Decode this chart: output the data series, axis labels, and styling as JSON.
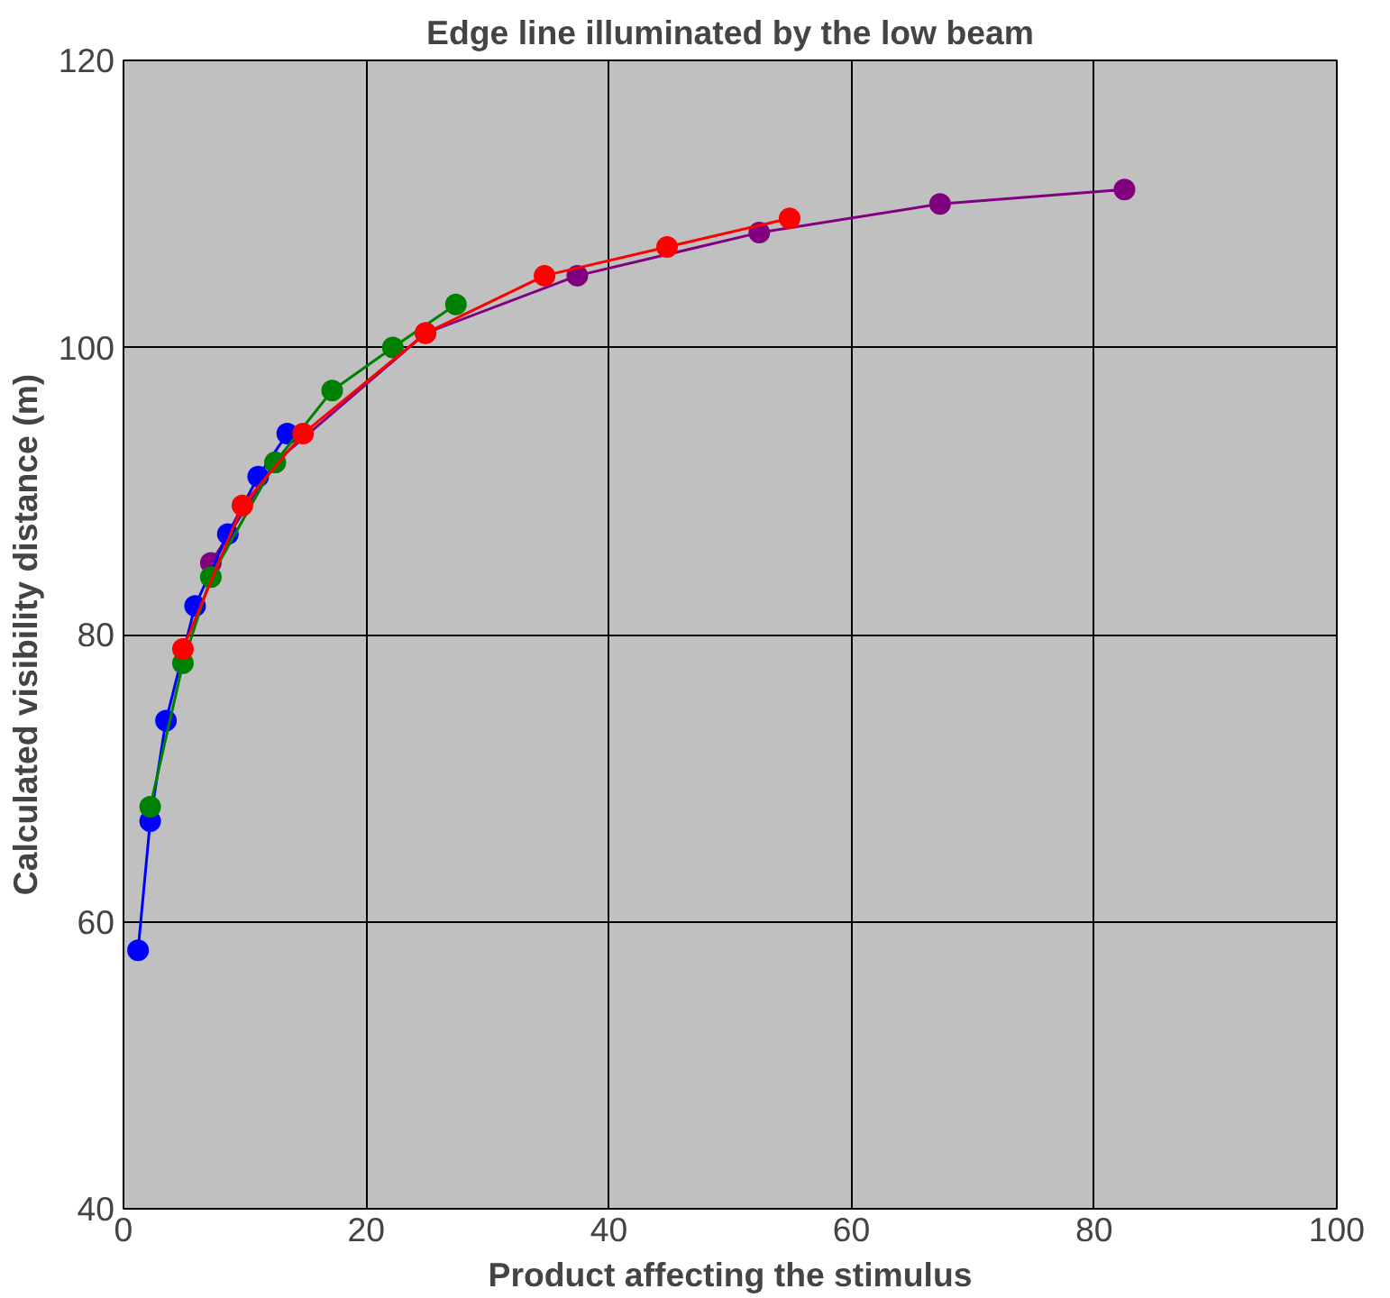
{
  "chart_data": {
    "type": "line",
    "title": "Edge line illuminated by the low beam",
    "xlabel": "Product affecting the stimulus",
    "ylabel": "Calculated visibility distance (m)",
    "xlim": [
      0,
      100
    ],
    "xticks": [
      0,
      20,
      40,
      60,
      80,
      100
    ],
    "ylim": [
      40,
      120
    ],
    "yticks": [
      40,
      60,
      80,
      100,
      120
    ],
    "grid": true,
    "marker": "circle",
    "line_style": "solid",
    "series": [
      {
        "color": "#800080",
        "x": [
          7.2,
          12.5,
          24.9,
          37.4,
          52.4,
          67.3,
          82.5
        ],
        "values": [
          85,
          92,
          101,
          105,
          108,
          110,
          111
        ]
      },
      {
        "color": "#0000ff",
        "x": [
          1.2,
          2.2,
          3.5,
          5.9,
          8.6,
          11.1,
          13.5
        ],
        "values": [
          58,
          67,
          74,
          82,
          87,
          91,
          94
        ]
      },
      {
        "color": "#008000",
        "x": [
          2.2,
          4.9,
          7.2,
          12.5,
          17.2,
          22.2,
          27.4
        ],
        "values": [
          68,
          78,
          84,
          92,
          97,
          100,
          103
        ]
      },
      {
        "color": "#ff0000",
        "x": [
          4.9,
          9.8,
          14.8,
          24.9,
          34.7,
          44.8,
          54.9
        ],
        "values": [
          79,
          89,
          94,
          101,
          105,
          107,
          109
        ]
      }
    ]
  }
}
